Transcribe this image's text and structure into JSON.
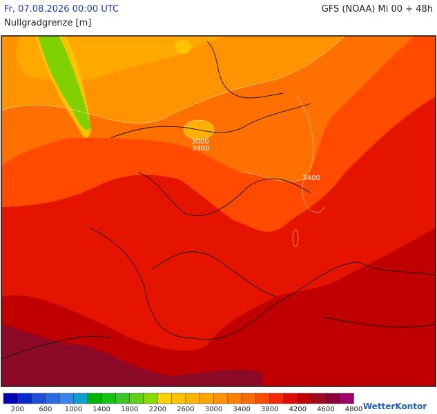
{
  "header": {
    "date": "Fr, 07.08.2026 00:00 UTC",
    "model": "GFS (NOAA) Mi 00 + 48h",
    "parameter": "Nullgradgrenze [m]"
  },
  "map": {
    "contour_labels": [
      3000,
      3400,
      3400
    ]
  },
  "colorbar": {
    "colors": [
      "#0000b4",
      "#0a28d2",
      "#1e4ed8",
      "#2a6ce0",
      "#3a86e8",
      "#0aa0d0",
      "#00b400",
      "#10c414",
      "#38c828",
      "#60d018",
      "#86dc00",
      "#ffd200",
      "#ffc400",
      "#ffb400",
      "#ffa400",
      "#ff9400",
      "#ff8000",
      "#ff6a00",
      "#ff4a00",
      "#f82800",
      "#e00c00",
      "#c00000",
      "#a00a1e",
      "#8c003c",
      "#a00070"
    ],
    "labels": [
      200,
      600,
      1000,
      1400,
      1800,
      2200,
      2600,
      3000,
      3400,
      3800,
      4200,
      4600,
      4800
    ]
  },
  "logo": "WetterKontor"
}
